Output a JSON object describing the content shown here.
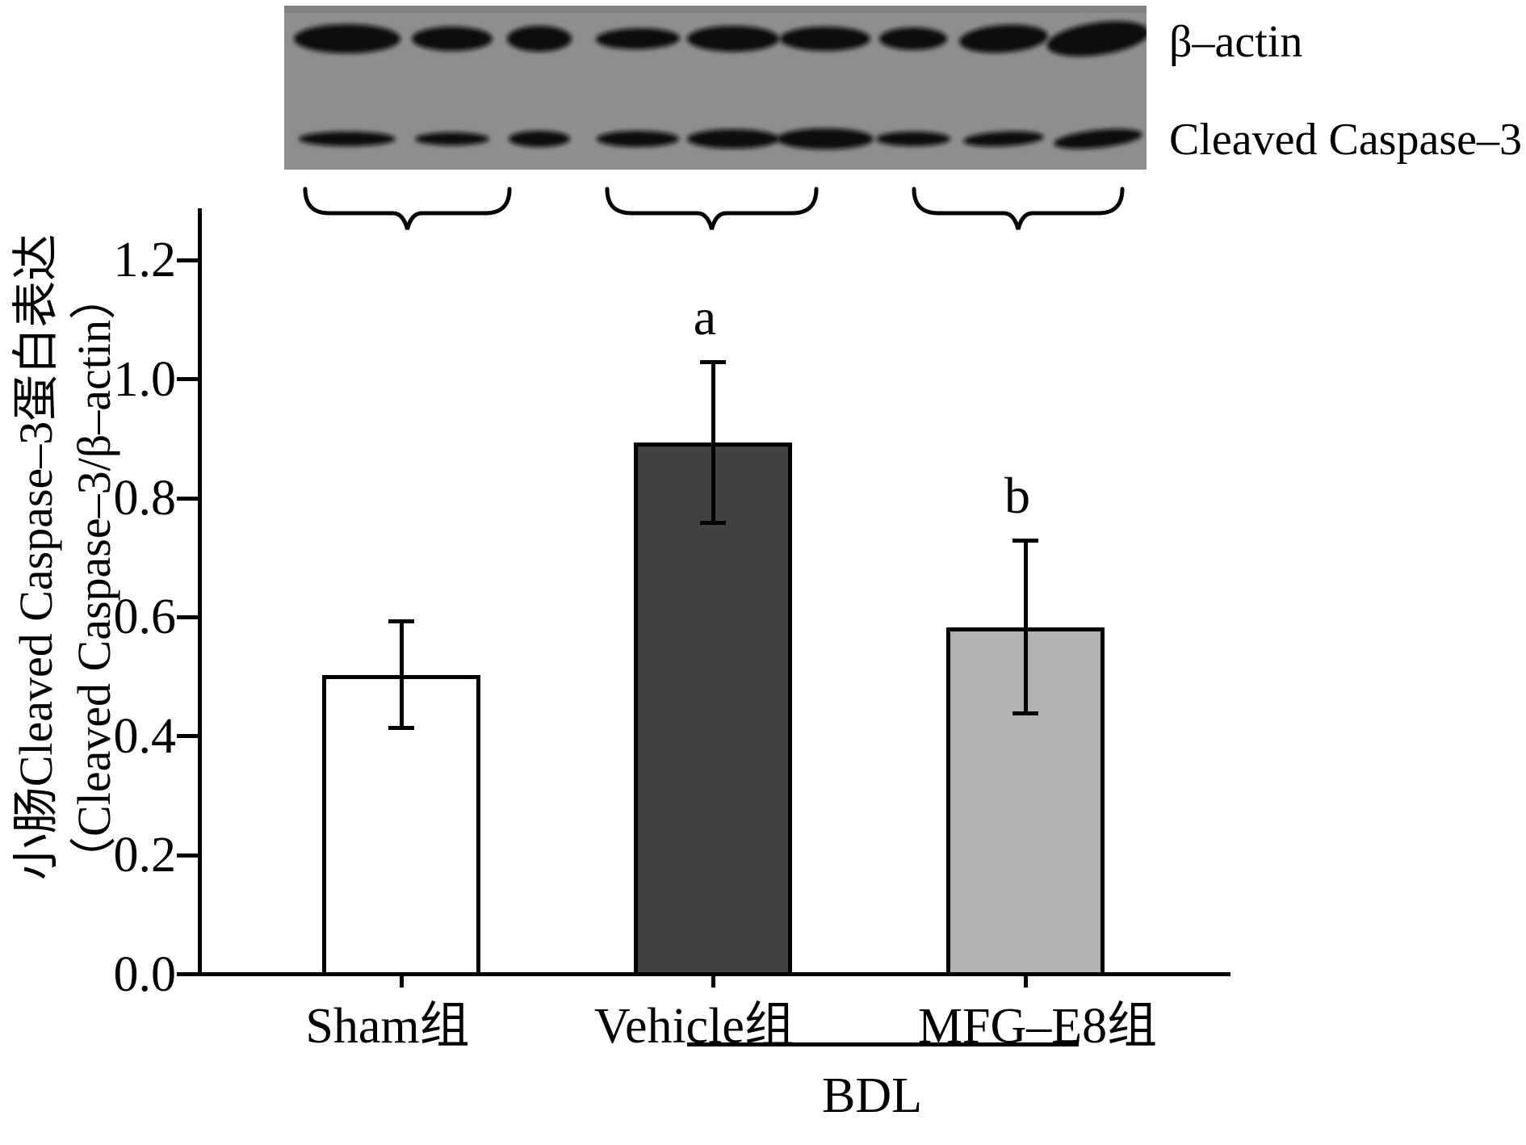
{
  "figure": {
    "background": "#ffffff"
  },
  "blot": {
    "row_labels": [
      "β–actin",
      "Cleaved Caspase–3"
    ],
    "num_lanes": 9,
    "background_color": "#8e8e8e",
    "band_color": "#0d0d0d",
    "lane_groups": [
      {
        "label": "Sham组",
        "lanes": 3
      },
      {
        "label": "Vehicle组",
        "lanes": 3
      },
      {
        "label": "MFG–E8组",
        "lanes": 3
      }
    ]
  },
  "chart_data": {
    "type": "bar",
    "title": "",
    "categories": [
      "Sham组",
      "Vehicle组",
      "MFG–E8组"
    ],
    "values": [
      0.5,
      0.89,
      0.58
    ],
    "errors": [
      0.09,
      0.135,
      0.145
    ],
    "error_bars": "both",
    "significance_letters": [
      "",
      "a",
      "b"
    ],
    "bar_fill_colors": [
      "#ffffff",
      "#414141",
      "#b3b3b3"
    ],
    "bar_edge_color": "#000000",
    "ylabel_line1": "小肠Cleaved Caspase–3蛋白表达",
    "ylabel_line2": "（Cleaved Caspase–3/β–actin）",
    "xlabel": "",
    "yticks": [
      0,
      0.2,
      0.4,
      0.6,
      0.8,
      1,
      1.2
    ],
    "ytick_labels": [
      "0.0",
      "0.2",
      "0.4",
      "0.6",
      "0.8",
      "1.0",
      "1.2"
    ],
    "ylim": [
      0,
      1.3
    ],
    "grid": false,
    "legend": false,
    "group_annotation": {
      "label": "BDL",
      "applies_to": [
        "Vehicle组",
        "MFG–E8组"
      ]
    }
  }
}
